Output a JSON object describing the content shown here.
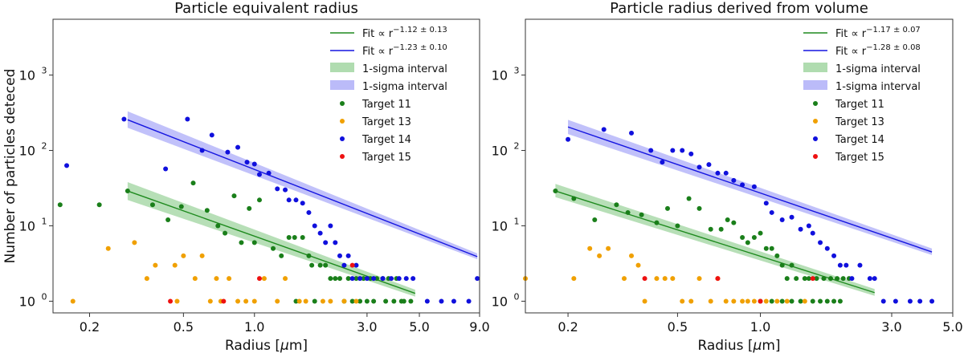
{
  "chart_data": [
    {
      "type": "scatter",
      "title": "Particle equivalent radius",
      "xlabel_base": "Radius [",
      "xlabel_mu": "μ",
      "xlabel_unit": "m]",
      "ylabel": "Number of particles deteced",
      "xscale": "log",
      "yscale": "log",
      "xlim": [
        0.14,
        9.0
      ],
      "ylim": [
        0.7,
        5500
      ],
      "xticks": [
        0.2,
        0.5,
        1.0,
        3.0,
        5.0,
        9.0
      ],
      "xtick_labels": [
        "0.2",
        "0.5",
        "1.0",
        "3.0",
        "5.0",
        "9.0"
      ],
      "yticks": [
        1,
        10,
        100,
        1000
      ],
      "ytick_labels": [
        "10",
        "10",
        "10",
        "10"
      ],
      "ytick_exponents": [
        "0",
        "1",
        "2",
        "3"
      ],
      "fits": [
        {
          "name": "Fit",
          "label_prefix": "Fit  ∝ r",
          "label_exp": "−1.12 ± 0.13",
          "color": "#1e8a1e",
          "band_color": "#7cc47c",
          "x": [
            0.29,
            4.8
          ],
          "y": [
            29,
            1.27
          ],
          "band_low": [
            22,
            1.15
          ],
          "band_high": [
            38,
            1.42
          ]
        },
        {
          "name": "Fit",
          "label_prefix": "Fit  ∝ r",
          "label_exp": "−1.23 ± 0.10",
          "color": "#1515e0",
          "band_color": "#8e8ef5",
          "x": [
            0.29,
            8.8
          ],
          "y": [
            255,
            3.9
          ],
          "band_low": [
            200,
            3.6
          ],
          "band_high": [
            330,
            4.3
          ]
        }
      ],
      "legend": [
        "1-sigma interval",
        "1-sigma interval",
        "Target 11",
        "Target 13",
        "Target 14",
        "Target 15"
      ],
      "legend_position": "top-right",
      "series": [
        {
          "name": "Target 11",
          "color": "#1a7f1a",
          "x": [
            0.15,
            0.22,
            0.29,
            0.37,
            0.43,
            0.49,
            0.55,
            0.63,
            0.7,
            0.75,
            0.82,
            0.88,
            0.95,
            1.0,
            1.05,
            1.2,
            1.3,
            1.4,
            1.48,
            1.6,
            1.7,
            1.75,
            1.9,
            2.0,
            2.1,
            2.2,
            2.3,
            2.5,
            2.7,
            2.9,
            3.1,
            3.3,
            3.5,
            3.7,
            4.0,
            2.4,
            2.8,
            3.0,
            3.6,
            4.3,
            4.6,
            1.5,
            1.8,
            2.6,
            3.2,
            3.9,
            4.2
          ],
          "y": [
            19,
            19,
            29,
            19,
            12,
            18,
            37,
            16,
            10,
            8,
            25,
            6,
            17,
            6,
            22,
            5,
            4,
            7,
            7,
            7,
            4,
            3,
            3,
            3,
            2,
            2,
            2,
            2,
            2,
            2,
            2,
            2,
            2,
            2,
            2,
            1,
            1,
            1,
            1,
            1,
            1,
            1,
            1,
            1,
            1,
            1,
            1
          ]
        },
        {
          "name": "Target 13",
          "color": "#f0a000",
          "x": [
            0.17,
            0.24,
            0.31,
            0.35,
            0.38,
            0.46,
            0.5,
            0.56,
            0.6,
            0.65,
            0.72,
            0.78,
            0.85,
            0.92,
            1.0,
            1.1,
            1.25,
            1.35,
            1.55,
            1.65,
            1.95,
            2.1,
            2.4,
            2.7,
            0.47,
            0.69
          ],
          "y": [
            1,
            5,
            6,
            2,
            3,
            3,
            4,
            2,
            4,
            1,
            1,
            2,
            1,
            1,
            1,
            2,
            1,
            2,
            1,
            1,
            1,
            1,
            1,
            1,
            1,
            2
          ]
        },
        {
          "name": "Target 14",
          "color": "#1010dd",
          "x": [
            0.16,
            0.28,
            0.42,
            0.52,
            0.6,
            0.66,
            0.77,
            0.85,
            0.93,
            1.0,
            1.05,
            1.15,
            1.25,
            1.35,
            1.4,
            1.5,
            1.6,
            1.7,
            1.8,
            1.9,
            2.0,
            2.1,
            2.2,
            2.3,
            2.4,
            2.5,
            2.6,
            2.7,
            2.8,
            3.0,
            3.2,
            3.5,
            3.8,
            4.1,
            4.4,
            4.7,
            5.4,
            6.2,
            7.0,
            8.1,
            8.8
          ],
          "y": [
            63,
            260,
            57,
            260,
            100,
            160,
            95,
            110,
            70,
            66,
            48,
            50,
            31,
            30,
            22,
            22,
            20,
            15,
            10,
            8,
            6,
            10,
            6,
            4,
            3,
            4,
            2,
            3,
            2,
            2,
            2,
            2,
            2,
            2,
            2,
            2,
            1,
            1,
            1,
            1,
            2
          ]
        },
        {
          "name": "Target 15",
          "color": "#ee1111",
          "x": [
            0.44,
            0.74,
            1.05,
            2.6
          ],
          "y": [
            1,
            1,
            2,
            3
          ]
        }
      ]
    },
    {
      "type": "scatter",
      "title": "Particle radius derived from volume",
      "xlabel_base": "Radius [",
      "xlabel_mu": "μ",
      "xlabel_unit": "m]",
      "ylabel": "",
      "xscale": "log",
      "yscale": "log",
      "xlim": [
        0.14,
        5.0
      ],
      "ylim": [
        0.7,
        5500
      ],
      "xticks": [
        0.2,
        0.5,
        1.0,
        3.0,
        5.0
      ],
      "xtick_labels": [
        "0.2",
        "0.5",
        "1.0",
        "3.0",
        "5.0"
      ],
      "yticks": [
        1,
        10,
        100,
        1000
      ],
      "ytick_labels": [
        "10",
        "10",
        "10",
        "10"
      ],
      "ytick_exponents": [
        "0",
        "1",
        "2",
        "3"
      ],
      "fits": [
        {
          "name": "Fit",
          "label_prefix": "Fit  ∝ r",
          "label_exp": "−1.17 ± 0.07",
          "color": "#1e8a1e",
          "band_color": "#7cc47c",
          "x": [
            0.18,
            2.6
          ],
          "y": [
            29,
            1.3
          ],
          "band_low": [
            24,
            1.18
          ],
          "band_high": [
            36,
            1.45
          ]
        },
        {
          "name": "Fit",
          "label_prefix": "Fit  ∝ r",
          "label_exp": "−1.28 ± 0.08",
          "color": "#1515e0",
          "band_color": "#8e8ef5",
          "x": [
            0.2,
            4.2
          ],
          "y": [
            205,
            4.5
          ],
          "band_low": [
            165,
            4.1
          ],
          "band_high": [
            255,
            5.0
          ]
        }
      ],
      "legend": [
        "1-sigma interval",
        "1-sigma interval",
        "Target 11",
        "Target 13",
        "Target 14",
        "Target 15"
      ],
      "legend_position": "top-right",
      "series": [
        {
          "name": "Target 11",
          "color": "#1a7f1a",
          "x": [
            0.18,
            0.21,
            0.25,
            0.3,
            0.33,
            0.37,
            0.42,
            0.46,
            0.5,
            0.55,
            0.6,
            0.66,
            0.72,
            0.76,
            0.8,
            0.86,
            0.9,
            0.95,
            1.0,
            1.05,
            1.1,
            1.15,
            1.2,
            1.25,
            1.3,
            1.35,
            1.45,
            1.5,
            1.6,
            1.7,
            1.8,
            1.9,
            2.0,
            2.1,
            1.0,
            1.1,
            1.2,
            1.3,
            1.4,
            1.55,
            1.65,
            1.75,
            1.85,
            1.95
          ],
          "y": [
            29,
            23,
            12,
            19,
            15,
            14,
            11,
            17,
            10,
            23,
            17,
            9,
            9,
            12,
            11,
            7,
            6,
            7,
            8,
            5,
            5,
            4,
            3,
            2,
            3,
            2,
            2,
            2,
            2,
            2,
            2,
            2,
            2,
            2,
            1,
            1,
            1,
            1,
            1,
            1,
            1,
            1,
            1,
            1
          ]
        },
        {
          "name": "Target 13",
          "color": "#f0a000",
          "x": [
            0.14,
            0.21,
            0.24,
            0.26,
            0.28,
            0.32,
            0.34,
            0.36,
            0.38,
            0.42,
            0.45,
            0.48,
            0.52,
            0.56,
            0.6,
            0.66,
            0.7,
            0.75,
            0.8,
            0.86,
            0.9,
            0.95,
            1.05,
            1.15,
            1.25,
            1.45
          ],
          "y": [
            2,
            2,
            5,
            4,
            5,
            2,
            4,
            3,
            1,
            2,
            2,
            2,
            1,
            1,
            2,
            1,
            2,
            1,
            1,
            1,
            1,
            1,
            1,
            1,
            1,
            1
          ]
        },
        {
          "name": "Target 14",
          "color": "#1010dd",
          "x": [
            0.2,
            0.27,
            0.34,
            0.4,
            0.44,
            0.48,
            0.52,
            0.56,
            0.6,
            0.65,
            0.7,
            0.75,
            0.8,
            0.86,
            0.95,
            1.05,
            1.1,
            1.2,
            1.3,
            1.4,
            1.5,
            1.55,
            1.65,
            1.75,
            1.85,
            1.95,
            2.05,
            2.15,
            2.3,
            2.5,
            2.6,
            2.8,
            3.1,
            3.5,
            3.8,
            4.2
          ],
          "y": [
            140,
            190,
            170,
            100,
            70,
            100,
            100,
            90,
            60,
            65,
            50,
            50,
            40,
            35,
            33,
            20,
            15,
            12,
            13,
            9,
            10,
            8,
            6,
            5,
            4,
            3,
            3,
            2,
            3,
            2,
            2,
            1,
            1,
            1,
            1,
            1
          ]
        },
        {
          "name": "Target 15",
          "color": "#ee1111",
          "x": [
            0.38,
            0.7,
            1.0,
            1.55
          ],
          "y": [
            2,
            2,
            1,
            2
          ]
        }
      ]
    }
  ]
}
